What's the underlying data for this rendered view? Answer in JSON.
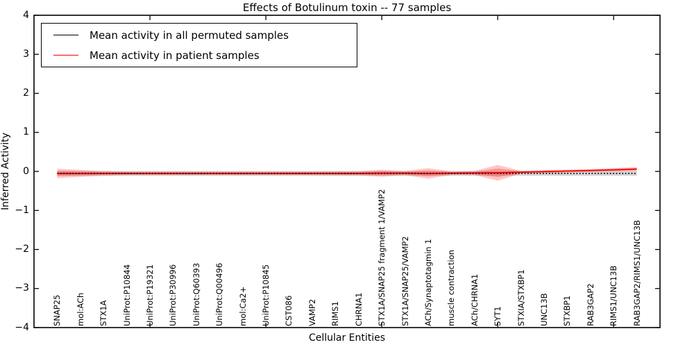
{
  "chart_data": {
    "type": "line",
    "title": "Effects of Botulinum toxin -- 77 samples",
    "xlabel": "Cellular Entities",
    "ylabel": "Inferred Activity",
    "ylim": [
      -4,
      4
    ],
    "yticks": [
      4,
      3,
      2,
      1,
      0,
      -1,
      -2,
      -3,
      -4
    ],
    "xtick_positions": [
      5,
      10,
      15,
      20,
      25
    ],
    "grid": false,
    "legend": {
      "position": "upper-left",
      "items": [
        {
          "label": "Mean activity in all permuted samples",
          "color": "#000000"
        },
        {
          "label": "Mean activity in patient samples",
          "color": "#ff0000"
        }
      ]
    },
    "categories": [
      "SNAP25",
      "mol:ACh",
      "STX1A",
      "UniProt:P10844",
      "UniProt:P19321",
      "UniProt:P30996",
      "UniProt:Q60393",
      "UniProt:Q00496",
      "mol:Ca2+",
      "UniProt:P10845",
      "CST086",
      "VAMP2",
      "RIMS1",
      "CHRNA1",
      "STX1A/SNAP25 fragment 1/VAMP2",
      "STX1A/SNAP25/VAMP2",
      "ACh/Synaptotagmin 1",
      "muscle contraction",
      "ACh/CHRNA1",
      "SYT1",
      "STXIA/STXBP1",
      "UNC13B",
      "STXBP1",
      "RAB3GAP2",
      "RIMS1/UNC13B",
      "RAB3GAP2/RIMS1/UNC13B"
    ],
    "series": [
      {
        "name": "Mean activity in all permuted samples",
        "color": "#000000",
        "line_style": "dotted",
        "values": [
          -0.05,
          -0.05,
          -0.05,
          -0.05,
          -0.05,
          -0.05,
          -0.05,
          -0.05,
          -0.05,
          -0.05,
          -0.05,
          -0.05,
          -0.05,
          -0.05,
          -0.05,
          -0.05,
          -0.05,
          -0.05,
          -0.05,
          -0.05,
          -0.05,
          -0.05,
          -0.05,
          -0.05,
          -0.05,
          -0.05
        ]
      },
      {
        "name": "Mean activity in patient samples",
        "color": "#ff0000",
        "line_style": "solid",
        "values": [
          -0.05,
          -0.05,
          -0.05,
          -0.05,
          -0.05,
          -0.05,
          -0.05,
          -0.05,
          -0.05,
          -0.05,
          -0.05,
          -0.05,
          -0.05,
          -0.05,
          -0.045,
          -0.045,
          -0.05,
          -0.045,
          -0.04,
          -0.035,
          -0.02,
          -0.005,
          0.01,
          0.025,
          0.04,
          0.06
        ]
      }
    ],
    "bands": [
      {
        "name": "permuted-samples-band",
        "color": "#999999",
        "opacity": 0.42,
        "center_series": 0,
        "halfwidths": [
          0.06,
          0.06,
          0.06,
          0.06,
          0.06,
          0.06,
          0.06,
          0.06,
          0.06,
          0.06,
          0.06,
          0.06,
          0.06,
          0.06,
          0.06,
          0.06,
          0.06,
          0.06,
          0.06,
          0.06,
          0.06,
          0.06,
          0.06,
          0.06,
          0.06,
          0.06
        ]
      },
      {
        "name": "patient-samples-band-outer",
        "color": "#ff2a2a",
        "opacity": 0.27,
        "center_series": 1,
        "halfwidths": [
          0.12,
          0.09,
          0.06,
          0.045,
          0.045,
          0.045,
          0.045,
          0.045,
          0.045,
          0.045,
          0.045,
          0.045,
          0.053,
          0.053,
          0.09,
          0.053,
          0.133,
          0.045,
          0.053,
          0.2,
          0.036,
          0.036,
          0.036,
          0.036,
          0.044,
          0.053
        ]
      },
      {
        "name": "patient-samples-band-inner",
        "color": "#ff2a2a",
        "opacity": 0.3,
        "center_series": 1,
        "halfwidths": [
          0.066,
          0.05,
          0.033,
          0.025,
          0.025,
          0.025,
          0.025,
          0.025,
          0.025,
          0.025,
          0.025,
          0.025,
          0.029,
          0.029,
          0.05,
          0.029,
          0.073,
          0.025,
          0.029,
          0.11,
          0.02,
          0.02,
          0.02,
          0.02,
          0.024,
          0.029
        ]
      }
    ]
  }
}
